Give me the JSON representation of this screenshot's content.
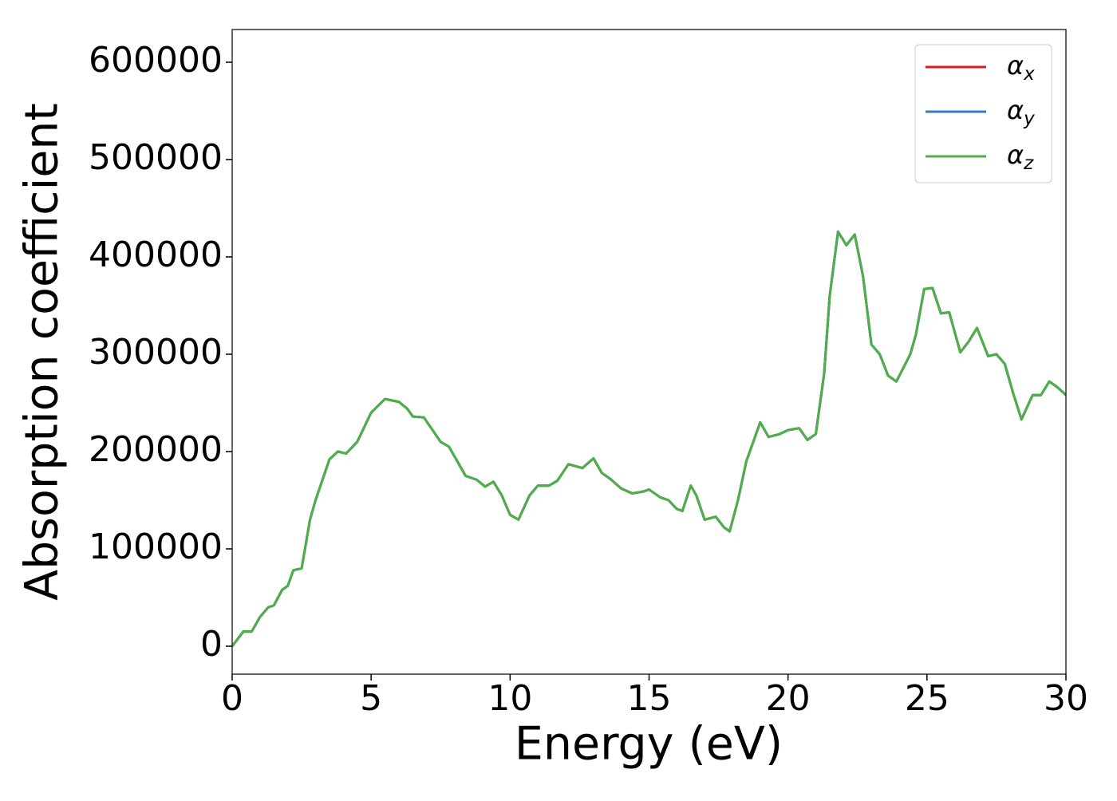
{
  "chart_data": {
    "type": "line",
    "xlabel": "Energy (eV)",
    "ylabel": "Absorption coefficient",
    "x": [
      0,
      0.4,
      0.7,
      1.0,
      1.3,
      1.5,
      1.8,
      2.0,
      2.2,
      2.5,
      2.8,
      3.0,
      3.5,
      3.8,
      4.1,
      4.5,
      5.0,
      5.5,
      6.0,
      6.3,
      6.5,
      6.9,
      7.5,
      7.8,
      8.0,
      8.4,
      8.8,
      9.1,
      9.4,
      9.7,
      10.0,
      10.3,
      10.7,
      11.0,
      11.4,
      11.7,
      12.1,
      12.6,
      13.0,
      13.3,
      13.6,
      14.0,
      14.4,
      14.8,
      15.0,
      15.4,
      15.7,
      16.0,
      16.2,
      16.5,
      16.7,
      17.0,
      17.4,
      17.7,
      17.9,
      18.2,
      18.5,
      19.0,
      19.3,
      19.7,
      20.0,
      20.4,
      20.7,
      21.0,
      21.3,
      21.5,
      21.8,
      22.1,
      22.4,
      22.7,
      23.0,
      23.3,
      23.6,
      23.9,
      24.4,
      24.6,
      24.9,
      25.2,
      25.5,
      25.8,
      26.2,
      26.5,
      26.8,
      27.2,
      27.5,
      27.8,
      28.1,
      28.4,
      28.8,
      29.1,
      29.4,
      29.7,
      30.0
    ],
    "series": [
      {
        "name": "αx",
        "color": "#e41a1c",
        "values": [
          0,
          15000,
          15000,
          30000,
          40000,
          42000,
          58000,
          62000,
          78000,
          80000,
          130000,
          150000,
          192000,
          200000,
          198000,
          210000,
          240000,
          254000,
          251000,
          244000,
          236000,
          235000,
          210000,
          205000,
          195000,
          175000,
          171000,
          164000,
          169000,
          155000,
          135000,
          130000,
          155000,
          165000,
          165000,
          170000,
          187000,
          183000,
          193000,
          178000,
          172000,
          162000,
          157000,
          159000,
          161000,
          153000,
          150000,
          141000,
          139000,
          165000,
          155000,
          130000,
          133000,
          122000,
          118000,
          150000,
          190000,
          230000,
          215000,
          218000,
          222000,
          224000,
          212000,
          218000,
          280000,
          360000,
          426000,
          412000,
          423000,
          380000,
          310000,
          300000,
          278000,
          272000,
          300000,
          320000,
          367000,
          368000,
          342000,
          343000,
          302000,
          313000,
          327000,
          298000,
          300000,
          290000,
          260000,
          233000,
          258000,
          258000,
          272000,
          266000,
          258000
        ]
      },
      {
        "name": "αy",
        "color": "#377eb8",
        "values": [
          0,
          15000,
          15000,
          30000,
          40000,
          42000,
          58000,
          62000,
          78000,
          80000,
          130000,
          150000,
          192000,
          200000,
          198000,
          210000,
          240000,
          254000,
          251000,
          244000,
          236000,
          235000,
          210000,
          205000,
          195000,
          175000,
          171000,
          164000,
          169000,
          155000,
          135000,
          130000,
          155000,
          165000,
          165000,
          170000,
          187000,
          183000,
          193000,
          178000,
          172000,
          162000,
          157000,
          159000,
          161000,
          153000,
          150000,
          141000,
          139000,
          165000,
          155000,
          130000,
          133000,
          122000,
          118000,
          150000,
          190000,
          230000,
          215000,
          218000,
          222000,
          224000,
          212000,
          218000,
          280000,
          360000,
          426000,
          412000,
          423000,
          380000,
          310000,
          300000,
          278000,
          272000,
          300000,
          320000,
          367000,
          368000,
          342000,
          343000,
          302000,
          313000,
          327000,
          298000,
          300000,
          290000,
          260000,
          233000,
          258000,
          258000,
          272000,
          266000,
          258000
        ]
      },
      {
        "name": "αz",
        "color": "#4daf4a",
        "values": [
          0,
          15000,
          15000,
          30000,
          40000,
          42000,
          58000,
          62000,
          78000,
          80000,
          130000,
          150000,
          192000,
          200000,
          198000,
          210000,
          240000,
          254000,
          251000,
          244000,
          236000,
          235000,
          210000,
          205000,
          195000,
          175000,
          171000,
          164000,
          169000,
          155000,
          135000,
          130000,
          155000,
          165000,
          165000,
          170000,
          187000,
          183000,
          193000,
          178000,
          172000,
          162000,
          157000,
          159000,
          161000,
          153000,
          150000,
          141000,
          139000,
          165000,
          155000,
          130000,
          133000,
          122000,
          118000,
          150000,
          190000,
          230000,
          215000,
          218000,
          222000,
          224000,
          212000,
          218000,
          280000,
          360000,
          426000,
          412000,
          423000,
          380000,
          310000,
          300000,
          278000,
          272000,
          300000,
          320000,
          367000,
          368000,
          342000,
          343000,
          302000,
          313000,
          327000,
          298000,
          300000,
          290000,
          260000,
          233000,
          258000,
          258000,
          272000,
          266000,
          258000
        ]
      }
    ],
    "xlim": [
      0,
      30
    ],
    "xticks": [
      0,
      5,
      10,
      15,
      20,
      25,
      30
    ],
    "ylim": [
      -28700,
      633600
    ],
    "yticks": [
      0,
      100000,
      200000,
      300000,
      400000,
      500000,
      600000
    ],
    "legend": "upper right",
    "grid": false
  }
}
